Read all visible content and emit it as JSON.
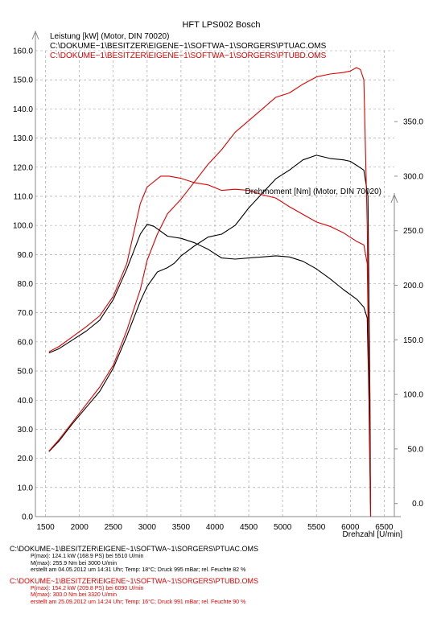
{
  "chart_data": {
    "type": "line",
    "title": "HFT LPS002 Bosch",
    "xlabel": "Drehzahl [U/min]",
    "ylabel_left": "Leistung [kW] (Motor, DIN 70020)",
    "ylabel_right": "Drehmoment [Nm] (Motor, DIN 70020)",
    "legend": [
      {
        "text": "C:\\DOKUME~1\\BESITZER\\EIGENE~1\\SOFTWA~1\\SORGERS\\PTUAC.OMS",
        "color": "#000000"
      },
      {
        "text": "C:\\DOKUME~1\\BESITZER\\EIGENE~1\\SOFTWA~1\\SORGERS\\PTUBD.OMS",
        "color": "#e00000"
      }
    ],
    "xlim": [
      1350,
      6650
    ],
    "x_ticks": [
      1500,
      2000,
      2500,
      3000,
      3500,
      4000,
      4500,
      5000,
      5500,
      6000,
      6500
    ],
    "x_tick_labels": [
      "1500",
      "2000",
      "2500",
      "3000",
      "3500",
      "4000",
      "4500",
      "5000",
      "5500",
      "6000",
      "6500"
    ],
    "ylim_left": [
      0,
      160
    ],
    "y_left_ticks": [
      0,
      10,
      20,
      30,
      40,
      50,
      60,
      70,
      80,
      90,
      100,
      110,
      120,
      130,
      140,
      150,
      160
    ],
    "y_left_tick_labels": [
      "0.0",
      "10.0",
      "20.0",
      "30.0",
      "40.0",
      "50.0",
      "60.0",
      "70.0",
      "80.0",
      "90.0",
      "100.0",
      "110.0",
      "120.0",
      "130.0",
      "140.0",
      "150.0",
      "160.0"
    ],
    "ylim_right": [
      -12,
      415
    ],
    "y_right_ticks": [
      0,
      50,
      100,
      150,
      200,
      250,
      300,
      350
    ],
    "y_right_tick_labels": [
      "0.0",
      "50.0",
      "100.0",
      "150.0",
      "200.0",
      "250.0",
      "300.0",
      "350.0"
    ],
    "grid": true,
    "series": [
      {
        "name": "P PTUAC",
        "axis": "left",
        "color": "#000000",
        "x": [
          1550,
          1700,
          1900,
          2100,
          2300,
          2500,
          2700,
          2900,
          3000,
          3150,
          3300,
          3400,
          3500,
          3700,
          3900,
          4100,
          4300,
          4500,
          4700,
          4900,
          5100,
          5300,
          5500,
          5700,
          5900,
          6000,
          6100,
          6200,
          6260,
          6290,
          6300
        ],
        "y": [
          22.3,
          26.0,
          32.0,
          37.5,
          43.0,
          51.0,
          62.0,
          74.0,
          79.0,
          84.0,
          85.5,
          87.0,
          89.5,
          93.0,
          96.0,
          97.0,
          100.0,
          106.0,
          111.0,
          116.0,
          119.0,
          122.5,
          124.1,
          123.0,
          122.5,
          122.0,
          120.5,
          119.0,
          110.0,
          40.0,
          0.0
        ]
      },
      {
        "name": "P PTUBD",
        "axis": "left",
        "color": "#e00000",
        "x": [
          1550,
          1700,
          1900,
          2100,
          2300,
          2500,
          2700,
          2900,
          3000,
          3150,
          3300,
          3500,
          3700,
          3900,
          4100,
          4300,
          4500,
          4700,
          4900,
          5100,
          5300,
          5500,
          5700,
          5900,
          6000,
          6090,
          6150,
          6200,
          6250,
          6280,
          6300
        ],
        "y": [
          22.5,
          26.5,
          32.5,
          38.5,
          44.5,
          52.0,
          64.0,
          78.0,
          88.0,
          97.0,
          104.0,
          109.0,
          115.0,
          121.0,
          126.0,
          132.0,
          136.0,
          140.0,
          144.0,
          145.5,
          148.5,
          151.0,
          152.0,
          152.5,
          153.0,
          154.2,
          153.5,
          150.0,
          100.0,
          30.0,
          0.0
        ]
      },
      {
        "name": "M PTUAC",
        "axis": "right",
        "color": "#000000",
        "x": [
          1550,
          1700,
          1900,
          2100,
          2300,
          2500,
          2700,
          2900,
          3000,
          3100,
          3300,
          3500,
          3700,
          3900,
          4100,
          4300,
          4500,
          4700,
          4900,
          5100,
          5300,
          5500,
          5700,
          5900,
          6100,
          6200,
          6250,
          6280,
          6300
        ],
        "y": [
          138.0,
          142.0,
          150.0,
          158.0,
          168.0,
          187.0,
          215.0,
          247.0,
          255.9,
          254.0,
          245.0,
          243.0,
          239.0,
          233.0,
          225.0,
          224.0,
          225.0,
          226.0,
          227.0,
          226.0,
          222.0,
          215.0,
          206.0,
          196.0,
          187.0,
          180.0,
          170.0,
          80.0,
          0.0
        ]
      },
      {
        "name": "M PTUBD",
        "axis": "right",
        "color": "#e00000",
        "x": [
          1550,
          1700,
          1900,
          2100,
          2300,
          2500,
          2700,
          2900,
          3000,
          3200,
          3320,
          3500,
          3700,
          3900,
          4100,
          4300,
          4500,
          4700,
          4900,
          5100,
          5300,
          5500,
          5700,
          5900,
          6100,
          6200,
          6250,
          6280,
          6300
        ],
        "y": [
          139.0,
          144.0,
          153.0,
          162.0,
          172.0,
          190.0,
          220.0,
          275.0,
          290.0,
          300.0,
          300.0,
          298.0,
          294.0,
          292.0,
          287.0,
          288.0,
          287.0,
          283.0,
          280.0,
          272.0,
          265.0,
          258.0,
          254.0,
          248.0,
          240.0,
          237.0,
          220.0,
          90.0,
          0.0
        ]
      }
    ]
  },
  "footer": {
    "file1": "C:\\DOKUME~1\\BESITZER\\EIGENE~1\\SOFTWA~1\\SORGERS\\PTUAC.OMS",
    "file1_pmax": "P(max): 124.1 kW (168.9 PS) bei 5510 U/min",
    "file1_mmax": "M(max): 255.9 Nm bei 3000 U/min",
    "file1_info": "erstellt am 04.05.2012 um 14:31 Uhr; Temp: 18°C; Druck 995 mBar; rel. Feuchte 82 %",
    "file2": "C:\\DOKUME~1\\BESITZER\\EIGENE~1\\SOFTWA~1\\SORGERS\\PTUBD.OMS",
    "file2_pmax": "P(max): 154.2 kW (209.8 PS) bei 6090 U/min",
    "file2_mmax": "M(max): 300.0 Nm bei 3320 U/min",
    "file2_info": "erstellt am 25.09.2012 um 14:24 Uhr; Temp: 16°C; Druck 991 mBar; rel. Feuchte 90 %",
    "color_red": "#e00000"
  }
}
